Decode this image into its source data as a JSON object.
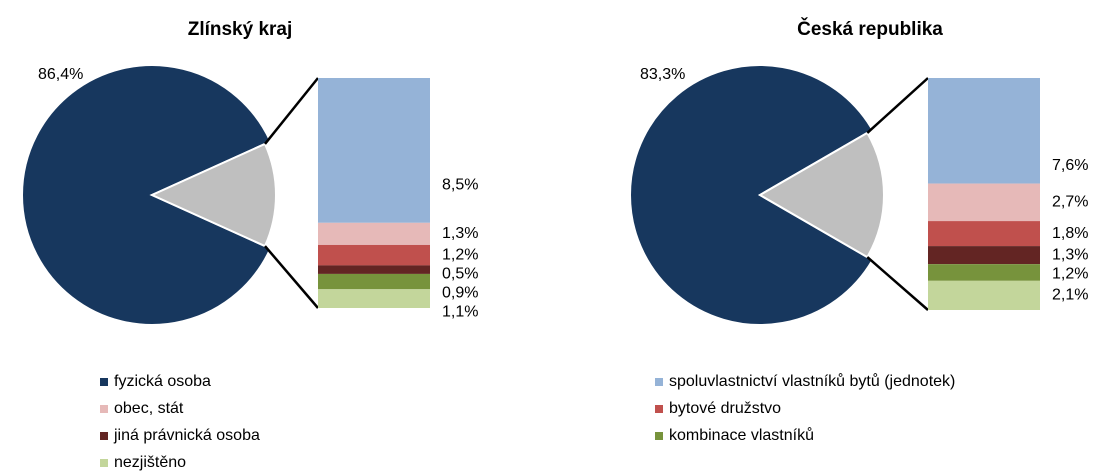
{
  "chart_data": [
    {
      "type": "pie-of-bar",
      "title": "Zlínský kraj",
      "categories": [
        "fyzická osoba",
        "spoluvlastnictví vlastníků bytů (jednotek)",
        "obec, stát",
        "bytové družstvo",
        "jiná právnická osoba",
        "kombinace vlastníků",
        "nezjištěno"
      ],
      "values": [
        86.4,
        8.5,
        1.3,
        1.2,
        0.5,
        0.9,
        1.1
      ],
      "value_labels": [
        "86,4%",
        "8,5%",
        "1,3%",
        "1,2%",
        "0,5%",
        "0,9%",
        "1,1%"
      ],
      "colors": [
        "#17375e",
        "#95b3d7",
        "#e6b9b8",
        "#c0504d",
        "#632523",
        "#77933c",
        "#c3d69b"
      ],
      "other_color": "#bfbfbf"
    },
    {
      "type": "pie-of-bar",
      "title": "Česká republika",
      "categories": [
        "fyzická osoba",
        "spoluvlastnictví vlastníků bytů (jednotek)",
        "obec, stát",
        "bytové družstvo",
        "jiná právnická osoba",
        "kombinace vlastníků",
        "nezjištěno"
      ],
      "values": [
        83.3,
        7.6,
        2.7,
        1.8,
        1.3,
        1.2,
        2.1
      ],
      "value_labels": [
        "83,3%",
        "7,6%",
        "2,7%",
        "1,8%",
        "1,3%",
        "1,2%",
        "2,1%"
      ],
      "colors": [
        "#17375e",
        "#95b3d7",
        "#e6b9b8",
        "#c0504d",
        "#632523",
        "#77933c",
        "#c3d69b"
      ],
      "other_color": "#bfbfbf"
    }
  ]
}
